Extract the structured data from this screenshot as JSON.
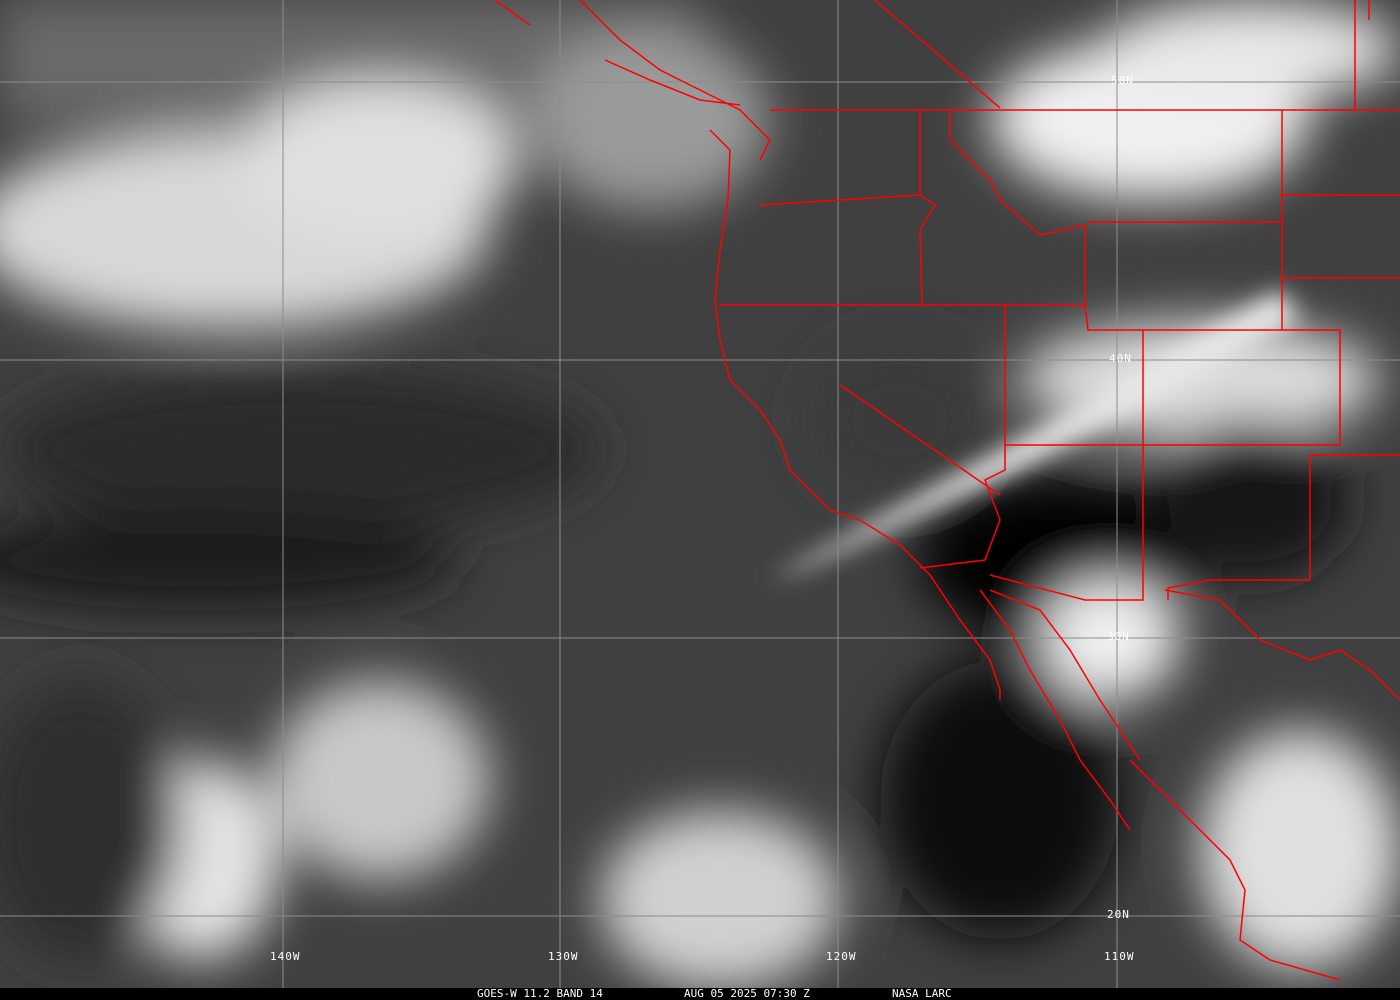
{
  "caption": {
    "satellite_band": "GOES-W 11.2 BAND 14",
    "datetime": "AUG 05 2025 07:30 Z",
    "source": "NASA LARC"
  },
  "latitude_labels": [
    "50N",
    "40N",
    "30N",
    "20N"
  ],
  "longitude_labels": [
    "140W",
    "130W",
    "120W",
    "110W"
  ],
  "colors": {
    "boundaries": "#ff0000",
    "grid": "#8c8c8c"
  }
}
